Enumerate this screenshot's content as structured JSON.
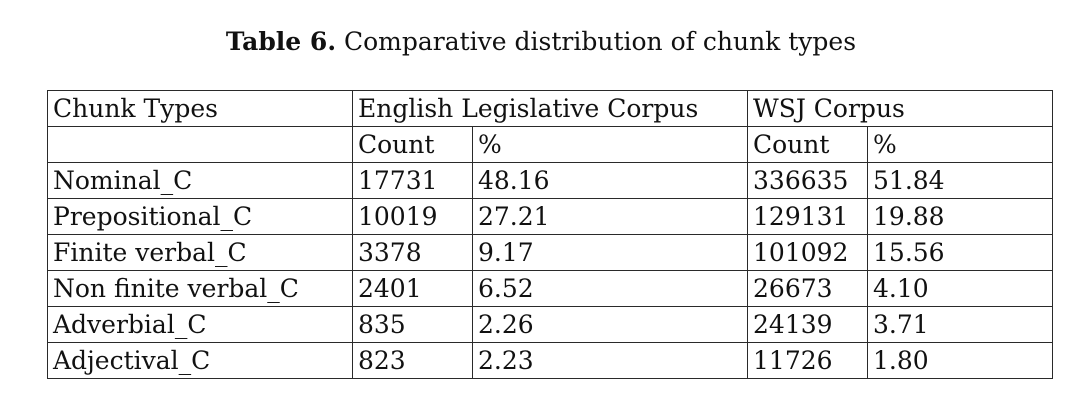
{
  "caption": {
    "label": "Table 6.",
    "text": "Comparative distribution of chunk types"
  },
  "table": {
    "header": {
      "col1": "Chunk Types",
      "group1": "English Legislative Corpus",
      "group2": "WSJ Corpus"
    },
    "subheader": {
      "count1": "Count",
      "pct1": "%",
      "count2": "Count",
      "pct2": "%"
    },
    "rows": [
      {
        "type": "Nominal_C",
        "elc_count": "17731",
        "elc_pct": "48.16",
        "wsj_count": "336635",
        "wsj_pct": "51.84"
      },
      {
        "type": "Prepositional_C",
        "elc_count": "10019",
        "elc_pct": "27.21",
        "wsj_count": "129131",
        "wsj_pct": "19.88"
      },
      {
        "type": "Finite verbal_C",
        "elc_count": "3378",
        "elc_pct": "9.17",
        "wsj_count": "101092",
        "wsj_pct": "15.56"
      },
      {
        "type": "Non finite verbal_C",
        "elc_count": "2401",
        "elc_pct": "6.52",
        "wsj_count": "26673",
        "wsj_pct": "4.10"
      },
      {
        "type": "Adverbial_C",
        "elc_count": "835",
        "elc_pct": "2.26",
        "wsj_count": "24139",
        "wsj_pct": "3.71"
      },
      {
        "type": "Adjectival_C",
        "elc_count": "823",
        "elc_pct": "2.23",
        "wsj_count": "11726",
        "wsj_pct": "1.80"
      }
    ]
  }
}
